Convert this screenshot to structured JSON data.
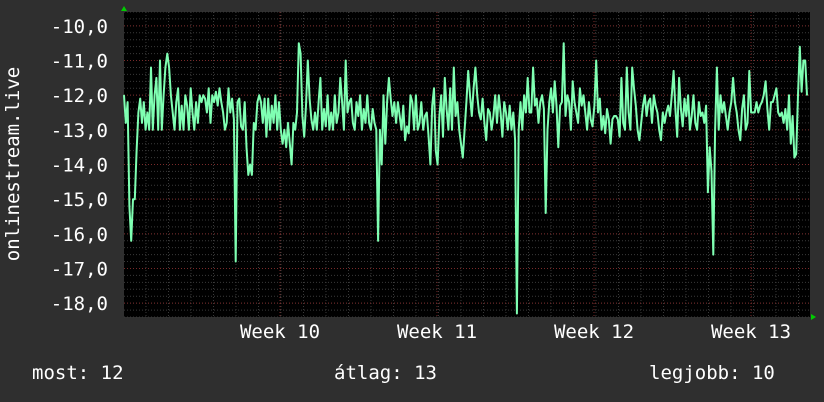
{
  "chart_data": {
    "type": "line",
    "ylabel": "onlinestream.live",
    "y_ticks": [
      "-10,0",
      "-11,0",
      "-12,0",
      "-13,0",
      "-14,0",
      "-15,0",
      "-16,0",
      "-17,0",
      "-18,0"
    ],
    "x_ticks": [
      "Week 10",
      "Week 11",
      "Week 12",
      "Week 13"
    ],
    "ylim": [
      -18.4,
      -9.6
    ],
    "grid": true,
    "colors": {
      "background": "#2f2f2f",
      "plot": "#000000",
      "line": "#7fffb2",
      "grid_major": "#7a2a2a",
      "grid_minor": "#3a3a3a",
      "arrow": "#00cc00"
    },
    "series": [
      {
        "values": [
          -12,
          -12.8,
          -12.2,
          -15.2,
          -16.2,
          -15,
          -15,
          -13.6,
          -12.5,
          -12.1,
          -12.8,
          -12.2,
          -13,
          -12.5,
          -13,
          -11.2,
          -13,
          -12,
          -11.5,
          -13,
          -11,
          -13,
          -12,
          -11.2,
          -10.8,
          -11.2,
          -12,
          -12.5,
          -13,
          -12.2,
          -11.8,
          -13,
          -12.3,
          -13,
          -12,
          -12.3,
          -13,
          -11.8,
          -12.5,
          -13,
          -12.2,
          -12.8,
          -12,
          -12.2,
          -12,
          -12.1,
          -12.5,
          -11.8,
          -12.8,
          -12,
          -12.2,
          -11.9,
          -12.3,
          -11.8,
          -12.2,
          -12.5,
          -13,
          -12.8,
          -11.8,
          -12.5,
          -12.1,
          -12.7,
          -16.8,
          -12.2,
          -12.1,
          -12.9,
          -13,
          -12.2,
          -13.5,
          -14.3,
          -14,
          -14.3,
          -12.8,
          -13,
          -12.2,
          -12,
          -12.2,
          -12.8,
          -12.1,
          -13.2,
          -12.1,
          -13,
          -12.3,
          -12.8,
          -12,
          -13,
          -12.2,
          -13,
          -13.4,
          -13,
          -13.5,
          -12.8,
          -13.4,
          -14,
          -12.8,
          -13,
          -12.5,
          -10.5,
          -10.8,
          -12.6,
          -13.2,
          -12.3,
          -11,
          -12.1,
          -12.7,
          -13,
          -12.5,
          -13,
          -12.2,
          -11.5,
          -13,
          -12.4,
          -12.9,
          -12,
          -13,
          -12.5,
          -13,
          -12,
          -12.8,
          -12.5,
          -11.5,
          -12.2,
          -13,
          -11,
          -12.5,
          -12.2,
          -12.1,
          -12.8,
          -13,
          -12.2,
          -12.6,
          -12,
          -13,
          -12.4,
          -12.8,
          -12,
          -12.8,
          -13,
          -12.4,
          -12.8,
          -13,
          -16.2,
          -13,
          -14,
          -12,
          -13.4,
          -12.2,
          -11.5,
          -12.1,
          -12.6,
          -12.2,
          -12.8,
          -12.2,
          -12.6,
          -13,
          -12.3,
          -13.3,
          -12.9,
          -13.1,
          -12,
          -12.2,
          -13,
          -12,
          -13,
          -12.8,
          -12.2,
          -13,
          -12.6,
          -12.5,
          -13.2,
          -14,
          -12.3,
          -11.8,
          -13.6,
          -14,
          -12.6,
          -12,
          -13.2,
          -11.5,
          -12.4,
          -13,
          -11.8,
          -13,
          -11.2,
          -12.6,
          -12.2,
          -13,
          -13.4,
          -13.8,
          -13,
          -12.2,
          -11.3,
          -12,
          -12.6,
          -11.8,
          -11.2,
          -12,
          -12.5,
          -12.7,
          -12.1,
          -12.8,
          -13.3,
          -12.4,
          -12.5,
          -13,
          -12.6,
          -12,
          -12.8,
          -12,
          -12.5,
          -13.2,
          -12.2,
          -12.5,
          -13,
          -12.3,
          -13,
          -12.5,
          -13.3,
          -18.3,
          -13,
          -12.2,
          -13,
          -12,
          -12.5,
          -11.5,
          -12.5,
          -12.5,
          -11.2,
          -12.3,
          -12.1,
          -12.8,
          -12.2,
          -12,
          -12.4,
          -15.4,
          -13,
          -12.2,
          -11.8,
          -12.5,
          -11.6,
          -12.3,
          -13.5,
          -12.3,
          -12.2,
          -10.5,
          -12.6,
          -12,
          -12.2,
          -13,
          -11.6,
          -12.2,
          -12.5,
          -12.8,
          -11.8,
          -12.3,
          -12,
          -12.5,
          -13,
          -12.2,
          -12.7,
          -12.9,
          -12.3,
          -11,
          -12.5,
          -12.1,
          -13,
          -12.6,
          -13.1,
          -12.4,
          -12.7,
          -13.4,
          -12.7,
          -12.6,
          -12.6,
          -12.7,
          -13.2,
          -11.5,
          -12.8,
          -13,
          -11.2,
          -12.5,
          -13,
          -11.2,
          -11.8,
          -12.3,
          -13,
          -13.3,
          -12.8,
          -12.3,
          -12,
          -12.6,
          -12.2,
          -12.1,
          -12.8,
          -12,
          -12.3,
          -12.5,
          -13,
          -13.3,
          -12.5,
          -12.8,
          -12.5,
          -12.3,
          -12.6,
          -12,
          -11.3,
          -12.4,
          -13.2,
          -11.5,
          -12.4,
          -12.9,
          -12.1,
          -12.6,
          -12,
          -13,
          -12.6,
          -12,
          -12.8,
          -13,
          -12.2,
          -12.6,
          -12.5,
          -12.8,
          -12.3,
          -14.8,
          -13.5,
          -14.2,
          -16.6,
          -13,
          -11.2,
          -13,
          -12,
          -12.5,
          -12.2,
          -12.6,
          -13,
          -12.5,
          -12.2,
          -11.5,
          -12.2,
          -12.5,
          -13,
          -13.3,
          -12.4,
          -12,
          -13,
          -12.8,
          -11.3,
          -12.5,
          -12.5,
          -12.5,
          -12.2,
          -12.5,
          -12.3,
          -12.2,
          -12,
          -11.6,
          -12.4,
          -13,
          -12.2,
          -12.2,
          -12,
          -11.8,
          -12.5,
          -12.6,
          -12.5,
          -12.8,
          -12.4,
          -13,
          -12,
          -13.4,
          -12.6,
          -13.8,
          -13.7,
          -12,
          -10.6,
          -11.9,
          -11,
          -11,
          -12
        ]
      }
    ]
  },
  "footer": {
    "now": "most: 12",
    "avg": "átlag: 13",
    "best": "legjobb: 10"
  }
}
